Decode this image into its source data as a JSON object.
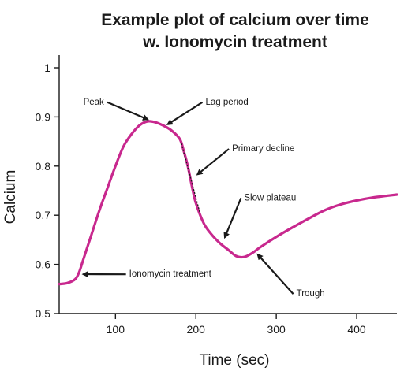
{
  "chart_data": {
    "type": "line",
    "title": [
      "Example plot of calcium over time",
      "w. Ionomycin treatment"
    ],
    "xlabel": "Time (sec)",
    "ylabel": "Calcium",
    "xlim": [
      30,
      450
    ],
    "ylim": [
      0.5,
      1.0
    ],
    "xticks": [
      100,
      200,
      300,
      400
    ],
    "yticks": [
      0.5,
      0.6,
      0.7,
      0.8,
      0.9,
      1.0
    ],
    "ytick_labels": [
      "0.5",
      "0.6",
      "0.7",
      "0.8",
      "0.9",
      "1"
    ],
    "grid": false,
    "color": "#c8288e",
    "series": [
      {
        "x": [
          30,
          40,
          50,
          55,
          60,
          70,
          80,
          90,
          100,
          110,
          120,
          130,
          140,
          150,
          160,
          170,
          180,
          185,
          190,
          195,
          200,
          210,
          220,
          230,
          240,
          250,
          260,
          270,
          280,
          300,
          320,
          340,
          360,
          380,
          400,
          420,
          440,
          450
        ],
        "y": [
          0.56,
          0.562,
          0.57,
          0.585,
          0.61,
          0.66,
          0.71,
          0.755,
          0.8,
          0.84,
          0.865,
          0.883,
          0.891,
          0.889,
          0.882,
          0.872,
          0.855,
          0.83,
          0.8,
          0.76,
          0.725,
          0.683,
          0.66,
          0.643,
          0.63,
          0.617,
          0.615,
          0.623,
          0.635,
          0.656,
          0.675,
          0.693,
          0.71,
          0.722,
          0.73,
          0.736,
          0.74,
          0.742
        ]
      }
    ],
    "annotations": [
      {
        "text": "Peak",
        "tx": 60,
        "ty": 0.925,
        "ax": 140,
        "ay": 0.895
      },
      {
        "text": "Lag period",
        "tx": 212,
        "ty": 0.925,
        "ax": 165,
        "ay": 0.885
      },
      {
        "text": "Primary decline",
        "tx": 245,
        "ty": 0.83,
        "ax": 202,
        "ay": 0.783
      },
      {
        "text": "Slow plateau",
        "tx": 260,
        "ty": 0.73,
        "ax": 236,
        "ay": 0.655
      },
      {
        "text": "Ionomycin treatment",
        "tx": 117,
        "ty": 0.575,
        "ax": 60,
        "ay": 0.58
      },
      {
        "text": "Trough",
        "tx": 325,
        "ty": 0.535,
        "ax": 277,
        "ay": 0.62
      }
    ]
  }
}
